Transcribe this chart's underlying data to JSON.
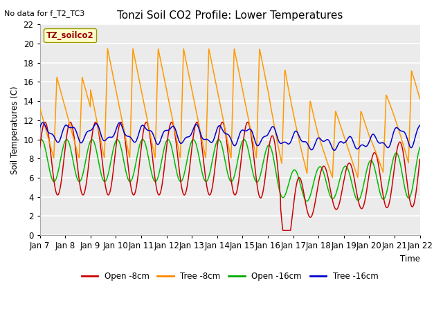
{
  "title": "Tonzi Soil CO2 Profile: Lower Temperatures",
  "subtitle": "No data for f_T2_TC3",
  "xlabel": "Time",
  "ylabel": "Soil Temperatures (C)",
  "ylim": [
    0,
    22
  ],
  "yticks": [
    0,
    2,
    4,
    6,
    8,
    10,
    12,
    14,
    16,
    18,
    20,
    22
  ],
  "xtick_labels": [
    "Jan 7",
    "Jan 8",
    "Jan 9",
    "Jan 10",
    "Jan 11",
    "Jan 12",
    "Jan 13",
    "Jan 14",
    "Jan 15",
    "Jan 16",
    "Jan 17",
    "Jan 18",
    "Jan 19",
    "Jan 20",
    "Jan 21",
    "Jan 22"
  ],
  "legend_label": "TZ_soilco2",
  "legend_entries": [
    "Open -8cm",
    "Tree -8cm",
    "Open -16cm",
    "Tree -16cm"
  ],
  "legend_colors": [
    "#cc0000",
    "#ff8800",
    "#00aa00",
    "#0000cc"
  ],
  "background_color": "#f0f0f0",
  "plot_bg_color": "#ebebeb",
  "grid_color": "#ffffff",
  "title_fontsize": 12,
  "axis_fontsize": 9
}
